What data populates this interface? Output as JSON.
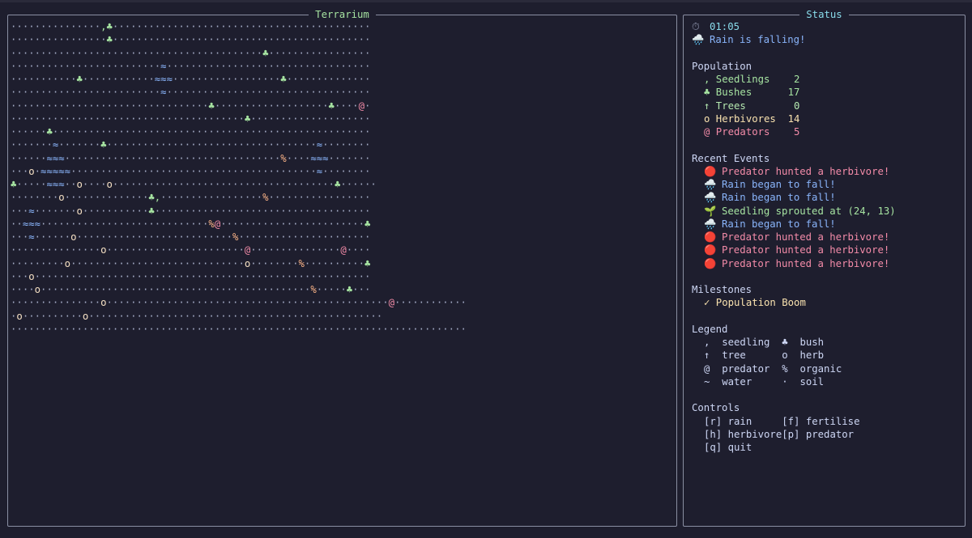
{
  "terrarium": {
    "title": "Terrarium",
    "rows": [
      "···············,♣···········································",
      "················♣···········································",
      "··········································♣·················",
      "·························≈··································",
      "···········♣············≈≈≈··················♣··············",
      "·························≈··································",
      "·································♣···················♣····@·",
      "·······································♣····················",
      "······♣·····················································",
      "·······≈·······♣···································≈········",
      "······≈≈≈····································%····≈≈≈·······",
      "···o·≈≈≈≈≈·········································≈········",
      "♣·····≈≈≈··o····o·····································♣······",
      "········o··············♣,·················%·················",
      "···≈·······o···········♣····································",
      "··≈≈≈····························%@························♣",
      "···≈······o··························%······················",
      "···············o·······················@···············@····",
      "·········o·····························o········%··········♣",
      "···o························································",
      "····o·············································%·····♣···",
      "···············o···············································@············",
      "·o··········o·················································",
      "············································································"
    ]
  },
  "status": {
    "title": "Status",
    "timer_icon": "⏱",
    "timer": "01:05",
    "weather_icon": "🌧️",
    "weather": "Rain is falling!",
    "population": {
      "heading": "Population",
      "rows": [
        {
          "symbol": ",",
          "name": "Seedlings",
          "count": 2
        },
        {
          "symbol": "♣",
          "name": "Bushes",
          "count": 17
        },
        {
          "symbol": "↑",
          "name": "Trees",
          "count": 0
        },
        {
          "symbol": "o",
          "name": "Herbivores",
          "count": 14
        },
        {
          "symbol": "@",
          "name": "Predators",
          "count": 5
        }
      ]
    },
    "events": {
      "heading": "Recent Events",
      "items": [
        {
          "icon": "🔴",
          "text": "Predator hunted a herbivore!"
        },
        {
          "icon": "🌧️",
          "text": "Rain began to fall!"
        },
        {
          "icon": "🌧️",
          "text": "Rain began to fall!"
        },
        {
          "icon": "🌱",
          "text": "Seedling sprouted at (24, 13)"
        },
        {
          "icon": "🌧️",
          "text": "Rain began to fall!"
        },
        {
          "icon": "🔴",
          "text": "Predator hunted a herbivore!"
        },
        {
          "icon": "🔴",
          "text": "Predator hunted a herbivore!"
        },
        {
          "icon": "🔴",
          "text": "Predator hunted a herbivore!"
        }
      ]
    },
    "milestones": {
      "heading": "Milestones",
      "items": [
        {
          "icon": "✓",
          "text": "Population Boom"
        }
      ]
    },
    "legend": {
      "heading": "Legend",
      "items": [
        {
          "symbol": ",",
          "label": "seedling"
        },
        {
          "symbol": "♣",
          "label": "bush"
        },
        {
          "symbol": "↑",
          "label": "tree"
        },
        {
          "symbol": "o",
          "label": "herb"
        },
        {
          "symbol": "@",
          "label": "predator"
        },
        {
          "symbol": "%",
          "label": "organic"
        },
        {
          "symbol": "~",
          "label": "water"
        },
        {
          "symbol": "·",
          "label": "soil"
        }
      ]
    },
    "controls": {
      "heading": "Controls",
      "items": [
        "[r] rain",
        "[f] fertilise",
        "[h] herbivore",
        "[p] predator",
        "[q] quit"
      ]
    }
  }
}
